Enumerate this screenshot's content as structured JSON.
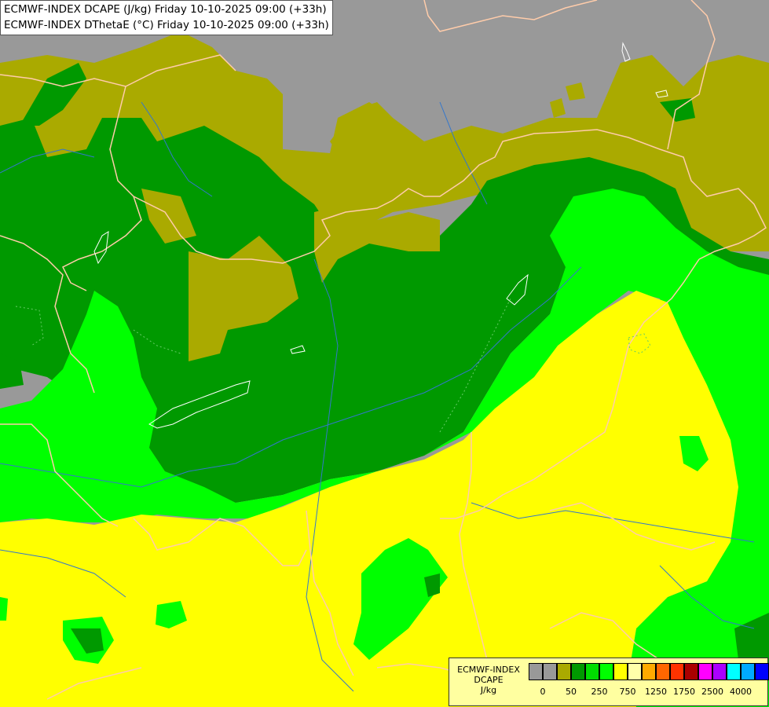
{
  "title": {
    "line1": "ECMWF-INDEX DCAPE (J/kg) Friday 10-10-2025 09:00 (+33h)",
    "line2": "ECMWF-INDEX DThetaE (°C) Friday 10-10-2025 09:00 (+33h)"
  },
  "legend": {
    "title": "ECMWF-INDEX",
    "variable": "DCAPE",
    "unit": "J/kg",
    "ticks": [
      "0",
      "50",
      "250",
      "750",
      "1250",
      "1750",
      "2500",
      "4000"
    ],
    "colors": [
      "#999999",
      "#999999",
      "#aaaa00",
      "#009900",
      "#00dd00",
      "#00ff00",
      "#ffff00",
      "#ffffaa",
      "#ffaa00",
      "#ff6600",
      "#ff3300",
      "#aa0000",
      "#ff00ff",
      "#aa00ff",
      "#00ffff",
      "#00aaff",
      "#0000ff",
      "#000099"
    ]
  },
  "fields": {
    "gray": "#999999",
    "olive": "#aaaa00",
    "dark_green": "#009900",
    "green": "#00dd00",
    "bright_green": "#00ff00",
    "yellow": "#ffff00"
  }
}
